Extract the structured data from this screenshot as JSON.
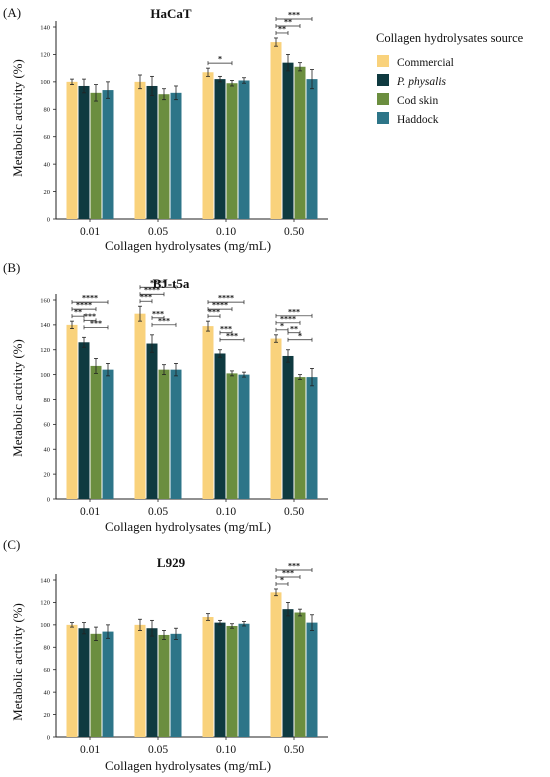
{
  "legend": {
    "title": "Collagen hydrolysates source",
    "items": [
      {
        "name": "Commercial",
        "color": "#f9d27c",
        "italic": false
      },
      {
        "name": "P. physalis",
        "color": "#0f3a40",
        "italic": true
      },
      {
        "name": "Cod skin",
        "color": "#6b8e3f",
        "italic": false
      },
      {
        "name": "Haddock",
        "color": "#2d7588",
        "italic": false
      }
    ]
  },
  "chart_data": [
    {
      "type": "bar",
      "panel_label": "(A)",
      "title": "HaCaT",
      "xlabel": "Collagen hydrolysates (mg/mL)",
      "ylabel": "Metabolic activity (%)",
      "categories": [
        "0.01",
        "0.05",
        "0.10",
        "0.50"
      ],
      "ylim": [
        0,
        140
      ],
      "yticks": [
        0,
        20,
        40,
        60,
        80,
        100,
        120,
        140
      ],
      "series": [
        {
          "name": "Commercial",
          "values": [
            100,
            100,
            107,
            129
          ],
          "errors": [
            2,
            5,
            3,
            3
          ]
        },
        {
          "name": "P. physalis",
          "values": [
            97,
            97,
            102,
            114
          ],
          "errors": [
            5,
            7,
            2,
            6
          ]
        },
        {
          "name": "Cod skin",
          "values": [
            92,
            91,
            99,
            111
          ],
          "errors": [
            6,
            4,
            2,
            3
          ]
        },
        {
          "name": "Haddock",
          "values": [
            94,
            92,
            101,
            102
          ],
          "errors": [
            6,
            5,
            2,
            7
          ]
        }
      ],
      "significance": [
        {
          "category": "0.10",
          "from": 0,
          "to": 2,
          "label": "*"
        },
        {
          "category": "0.50",
          "from": 0,
          "to": 1,
          "label": "**"
        },
        {
          "category": "0.50",
          "from": 0,
          "to": 2,
          "label": "**"
        },
        {
          "category": "0.50",
          "from": 0,
          "to": 3,
          "label": "***"
        }
      ]
    },
    {
      "type": "bar",
      "panel_label": "(B)",
      "title": "BJ-t5a",
      "xlabel": "Collagen hydrolysates (mg/mL)",
      "ylabel": "Metabolic activity (%)",
      "categories": [
        "0.01",
        "0.05",
        "0.10",
        "0.50"
      ],
      "ylim": [
        0,
        160
      ],
      "yticks": [
        0,
        20,
        40,
        60,
        80,
        100,
        120,
        140,
        160
      ],
      "series": [
        {
          "name": "Commercial",
          "values": [
            140,
            149,
            139,
            129
          ],
          "errors": [
            3,
            6,
            4,
            3
          ]
        },
        {
          "name": "P. physalis",
          "values": [
            126,
            125,
            117,
            115
          ],
          "errors": [
            4,
            7,
            3,
            5
          ]
        },
        {
          "name": "Cod skin",
          "values": [
            107,
            104,
            101,
            98
          ],
          "errors": [
            6,
            4,
            2,
            2
          ]
        },
        {
          "name": "Haddock",
          "values": [
            104,
            104,
            100,
            98
          ],
          "errors": [
            5,
            5,
            2,
            7
          ]
        }
      ],
      "significance": [
        {
          "category": "0.01",
          "from": 0,
          "to": 1,
          "label": "**"
        },
        {
          "category": "0.01",
          "from": 0,
          "to": 2,
          "label": "****"
        },
        {
          "category": "0.01",
          "from": 0,
          "to": 3,
          "label": "****"
        },
        {
          "category": "0.01",
          "from": 1,
          "to": 2,
          "label": "***"
        },
        {
          "category": "0.01",
          "from": 1,
          "to": 3,
          "label": "***"
        },
        {
          "category": "0.05",
          "from": 0,
          "to": 1,
          "label": "***"
        },
        {
          "category": "0.05",
          "from": 0,
          "to": 2,
          "label": "****"
        },
        {
          "category": "0.05",
          "from": 0,
          "to": 3,
          "label": "****"
        },
        {
          "category": "0.05",
          "from": 1,
          "to": 2,
          "label": "***"
        },
        {
          "category": "0.05",
          "from": 1,
          "to": 3,
          "label": "***"
        },
        {
          "category": "0.10",
          "from": 0,
          "to": 1,
          "label": "***"
        },
        {
          "category": "0.10",
          "from": 0,
          "to": 2,
          "label": "****"
        },
        {
          "category": "0.10",
          "from": 0,
          "to": 3,
          "label": "****"
        },
        {
          "category": "0.10",
          "from": 1,
          "to": 2,
          "label": "***"
        },
        {
          "category": "0.10",
          "from": 1,
          "to": 3,
          "label": "***"
        },
        {
          "category": "0.50",
          "from": 0,
          "to": 1,
          "label": "*"
        },
        {
          "category": "0.50",
          "from": 0,
          "to": 2,
          "label": "****"
        },
        {
          "category": "0.50",
          "from": 0,
          "to": 3,
          "label": "***"
        },
        {
          "category": "0.50",
          "from": 1,
          "to": 2,
          "label": "**"
        },
        {
          "category": "0.50",
          "from": 1,
          "to": 3,
          "label": "*"
        }
      ]
    },
    {
      "type": "bar",
      "panel_label": "(C)",
      "title": "L929",
      "xlabel": "Collagen hydrolysates (mg/mL)",
      "ylabel": "Metabolic activity (%)",
      "categories": [
        "0.01",
        "0.05",
        "0.10",
        "0.50"
      ],
      "ylim": [
        0,
        140
      ],
      "yticks": [
        0,
        20,
        40,
        60,
        80,
        100,
        120,
        140
      ],
      "series": [
        {
          "name": "Commercial",
          "values": [
            100,
            100,
            107,
            129
          ],
          "errors": [
            2,
            5,
            3,
            3
          ]
        },
        {
          "name": "P. physalis",
          "values": [
            97,
            97,
            102,
            114
          ],
          "errors": [
            5,
            7,
            2,
            6
          ]
        },
        {
          "name": "Cod skin",
          "values": [
            92,
            91,
            99,
            111
          ],
          "errors": [
            6,
            4,
            2,
            3
          ]
        },
        {
          "name": "Haddock",
          "values": [
            94,
            92,
            101,
            102
          ],
          "errors": [
            6,
            5,
            2,
            7
          ]
        }
      ],
      "significance": [
        {
          "category": "0.50",
          "from": 0,
          "to": 1,
          "label": "*"
        },
        {
          "category": "0.50",
          "from": 0,
          "to": 2,
          "label": "***"
        },
        {
          "category": "0.50",
          "from": 0,
          "to": 3,
          "label": "***"
        }
      ]
    }
  ]
}
